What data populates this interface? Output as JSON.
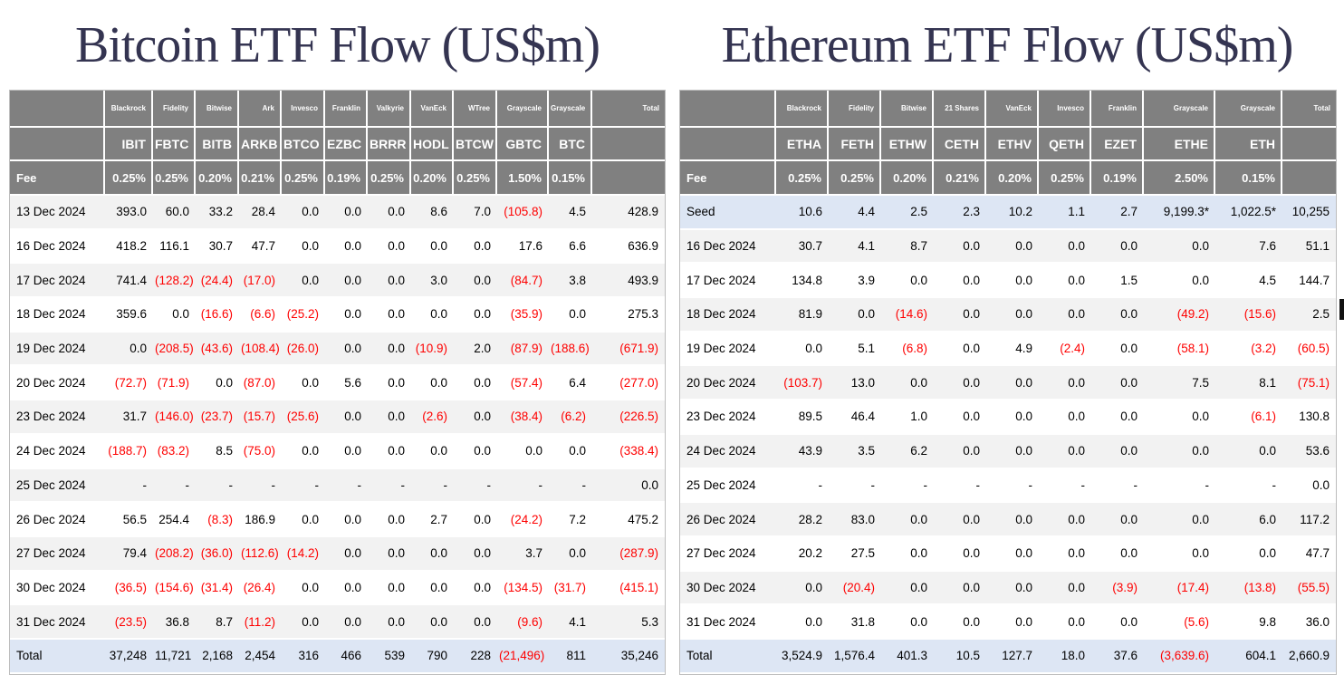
{
  "colors": {
    "header_bg": "#808080",
    "row_stripe": "#f2f2f2",
    "highlight_blue": "#dde6f4",
    "negative_red": "#fe0000",
    "title_navy": "#343451",
    "table_border": "#bdbdbd"
  },
  "chart_data": [
    {
      "type": "table",
      "title": "Bitcoin ETF Flow (US$m)",
      "total_label": "Total",
      "fee_row_label": "Fee",
      "issuers": [
        "Blackrock",
        "Fidelity",
        "Bitwise",
        "Ark",
        "Invesco",
        "Franklin",
        "Valkyrie",
        "VanEck",
        "WTree",
        "Grayscale",
        "Grayscale"
      ],
      "tickers": [
        "IBIT",
        "FBTC",
        "BITB",
        "ARKB",
        "BTCO",
        "EZBC",
        "BRRR",
        "HODL",
        "BTCW",
        "GBTC",
        "BTC"
      ],
      "fees": [
        "0.25%",
        "0.25%",
        "0.20%",
        "0.21%",
        "0.25%",
        "0.19%",
        "0.25%",
        "0.20%",
        "0.25%",
        "1.50%",
        "0.15%"
      ],
      "rows": [
        {
          "label": "13 Dec 2024",
          "values": [
            "393.0",
            "60.0",
            "33.2",
            "28.4",
            "0.0",
            "0.0",
            "0.0",
            "8.6",
            "7.0",
            "(105.8)",
            "4.5",
            "428.9"
          ]
        },
        {
          "label": "16 Dec 2024",
          "values": [
            "418.2",
            "116.1",
            "30.7",
            "47.7",
            "0.0",
            "0.0",
            "0.0",
            "0.0",
            "0.0",
            "17.6",
            "6.6",
            "636.9"
          ]
        },
        {
          "label": "17 Dec 2024",
          "values": [
            "741.4",
            "(128.2)",
            "(24.4)",
            "(17.0)",
            "0.0",
            "0.0",
            "0.0",
            "3.0",
            "0.0",
            "(84.7)",
            "3.8",
            "493.9"
          ]
        },
        {
          "label": "18 Dec 2024",
          "values": [
            "359.6",
            "0.0",
            "(16.6)",
            "(6.6)",
            "(25.2)",
            "0.0",
            "0.0",
            "0.0",
            "0.0",
            "(35.9)",
            "0.0",
            "275.3"
          ]
        },
        {
          "label": "19 Dec 2024",
          "values": [
            "0.0",
            "(208.5)",
            "(43.6)",
            "(108.4)",
            "(26.0)",
            "0.0",
            "0.0",
            "(10.9)",
            "2.0",
            "(87.9)",
            "(188.6)",
            "(671.9)"
          ]
        },
        {
          "label": "20 Dec 2024",
          "values": [
            "(72.7)",
            "(71.9)",
            "0.0",
            "(87.0)",
            "0.0",
            "5.6",
            "0.0",
            "0.0",
            "0.0",
            "(57.4)",
            "6.4",
            "(277.0)"
          ]
        },
        {
          "label": "23 Dec 2024",
          "values": [
            "31.7",
            "(146.0)",
            "(23.7)",
            "(15.7)",
            "(25.6)",
            "0.0",
            "0.0",
            "(2.6)",
            "0.0",
            "(38.4)",
            "(6.2)",
            "(226.5)"
          ]
        },
        {
          "label": "24 Dec 2024",
          "values": [
            "(188.7)",
            "(83.2)",
            "8.5",
            "(75.0)",
            "0.0",
            "0.0",
            "0.0",
            "0.0",
            "0.0",
            "0.0",
            "0.0",
            "(338.4)"
          ]
        },
        {
          "label": "25 Dec 2024",
          "values": [
            "-",
            "-",
            "-",
            "-",
            "-",
            "-",
            "-",
            "-",
            "-",
            "-",
            "-",
            "0.0"
          ]
        },
        {
          "label": "26 Dec 2024",
          "values": [
            "56.5",
            "254.4",
            "(8.3)",
            "186.9",
            "0.0",
            "0.0",
            "0.0",
            "2.7",
            "0.0",
            "(24.2)",
            "7.2",
            "475.2"
          ]
        },
        {
          "label": "27 Dec 2024",
          "values": [
            "79.4",
            "(208.2)",
            "(36.0)",
            "(112.6)",
            "(14.2)",
            "0.0",
            "0.0",
            "0.0",
            "0.0",
            "3.7",
            "0.0",
            "(287.9)"
          ]
        },
        {
          "label": "30 Dec 2024",
          "values": [
            "(36.5)",
            "(154.6)",
            "(31.4)",
            "(26.4)",
            "0.0",
            "0.0",
            "0.0",
            "0.0",
            "0.0",
            "(134.5)",
            "(31.7)",
            "(415.1)"
          ]
        },
        {
          "label": "31 Dec 2024",
          "values": [
            "(23.5)",
            "36.8",
            "8.7",
            "(11.2)",
            "0.0",
            "0.0",
            "0.0",
            "0.0",
            "0.0",
            "(9.6)",
            "4.1",
            "5.3"
          ]
        }
      ],
      "total_row": {
        "label": "Total",
        "values": [
          "37,248",
          "11,721",
          "2,168",
          "2,454",
          "316",
          "466",
          "539",
          "790",
          "228",
          "(21,496)",
          "811",
          "35,246"
        ]
      }
    },
    {
      "type": "table",
      "title": "Ethereum ETF Flow (US$m)",
      "total_label": "Total",
      "fee_row_label": "Fee",
      "issuers": [
        "Blackrock",
        "Fidelity",
        "Bitwise",
        "21 Shares",
        "VanEck",
        "Invesco",
        "Franklin",
        "Grayscale",
        "Grayscale"
      ],
      "tickers": [
        "ETHA",
        "FETH",
        "ETHW",
        "CETH",
        "ETHV",
        "QETH",
        "EZET",
        "ETHE",
        "ETH"
      ],
      "fees": [
        "0.25%",
        "0.25%",
        "0.20%",
        "0.21%",
        "0.20%",
        "0.25%",
        "0.19%",
        "2.50%",
        "0.15%"
      ],
      "rows": [
        {
          "label": "Seed",
          "seed": true,
          "values": [
            "10.6",
            "4.4",
            "2.5",
            "2.3",
            "10.2",
            "1.1",
            "2.7",
            "9,199.3*",
            "1,022.5*",
            "10,255"
          ]
        },
        {
          "label": "16 Dec 2024",
          "values": [
            "30.7",
            "4.1",
            "8.7",
            "0.0",
            "0.0",
            "0.0",
            "0.0",
            "0.0",
            "7.6",
            "51.1"
          ]
        },
        {
          "label": "17 Dec 2024",
          "values": [
            "134.8",
            "3.9",
            "0.0",
            "0.0",
            "0.0",
            "0.0",
            "1.5",
            "0.0",
            "4.5",
            "144.7"
          ]
        },
        {
          "label": "18 Dec 2024",
          "values": [
            "81.9",
            "0.0",
            "(14.6)",
            "0.0",
            "0.0",
            "0.0",
            "0.0",
            "(49.2)",
            "(15.6)",
            "2.5"
          ]
        },
        {
          "label": "19 Dec 2024",
          "values": [
            "0.0",
            "5.1",
            "(6.8)",
            "0.0",
            "4.9",
            "(2.4)",
            "0.0",
            "(58.1)",
            "(3.2)",
            "(60.5)"
          ]
        },
        {
          "label": "20 Dec 2024",
          "values": [
            "(103.7)",
            "13.0",
            "0.0",
            "0.0",
            "0.0",
            "0.0",
            "0.0",
            "7.5",
            "8.1",
            "(75.1)"
          ]
        },
        {
          "label": "23 Dec 2024",
          "values": [
            "89.5",
            "46.4",
            "1.0",
            "0.0",
            "0.0",
            "0.0",
            "0.0",
            "0.0",
            "(6.1)",
            "130.8"
          ]
        },
        {
          "label": "24 Dec 2024",
          "values": [
            "43.9",
            "3.5",
            "6.2",
            "0.0",
            "0.0",
            "0.0",
            "0.0",
            "0.0",
            "0.0",
            "53.6"
          ]
        },
        {
          "label": "25 Dec 2024",
          "values": [
            "-",
            "-",
            "-",
            "-",
            "-",
            "-",
            "-",
            "-",
            "-",
            "0.0"
          ]
        },
        {
          "label": "26 Dec 2024",
          "values": [
            "28.2",
            "83.0",
            "0.0",
            "0.0",
            "0.0",
            "0.0",
            "0.0",
            "0.0",
            "6.0",
            "117.2"
          ]
        },
        {
          "label": "27 Dec 2024",
          "values": [
            "20.2",
            "27.5",
            "0.0",
            "0.0",
            "0.0",
            "0.0",
            "0.0",
            "0.0",
            "0.0",
            "47.7"
          ]
        },
        {
          "label": "30 Dec 2024",
          "values": [
            "0.0",
            "(20.4)",
            "0.0",
            "0.0",
            "0.0",
            "0.0",
            "(3.9)",
            "(17.4)",
            "(13.8)",
            "(55.5)"
          ]
        },
        {
          "label": "31 Dec 2024",
          "values": [
            "0.0",
            "31.8",
            "0.0",
            "0.0",
            "0.0",
            "0.0",
            "0.0",
            "(5.6)",
            "9.8",
            "36.0"
          ]
        }
      ],
      "total_row": {
        "label": "Total",
        "values": [
          "3,524.9",
          "1,576.4",
          "401.3",
          "10.5",
          "127.7",
          "18.0",
          "37.6",
          "(3,639.6)",
          "604.1",
          "2,660.9"
        ]
      }
    }
  ]
}
